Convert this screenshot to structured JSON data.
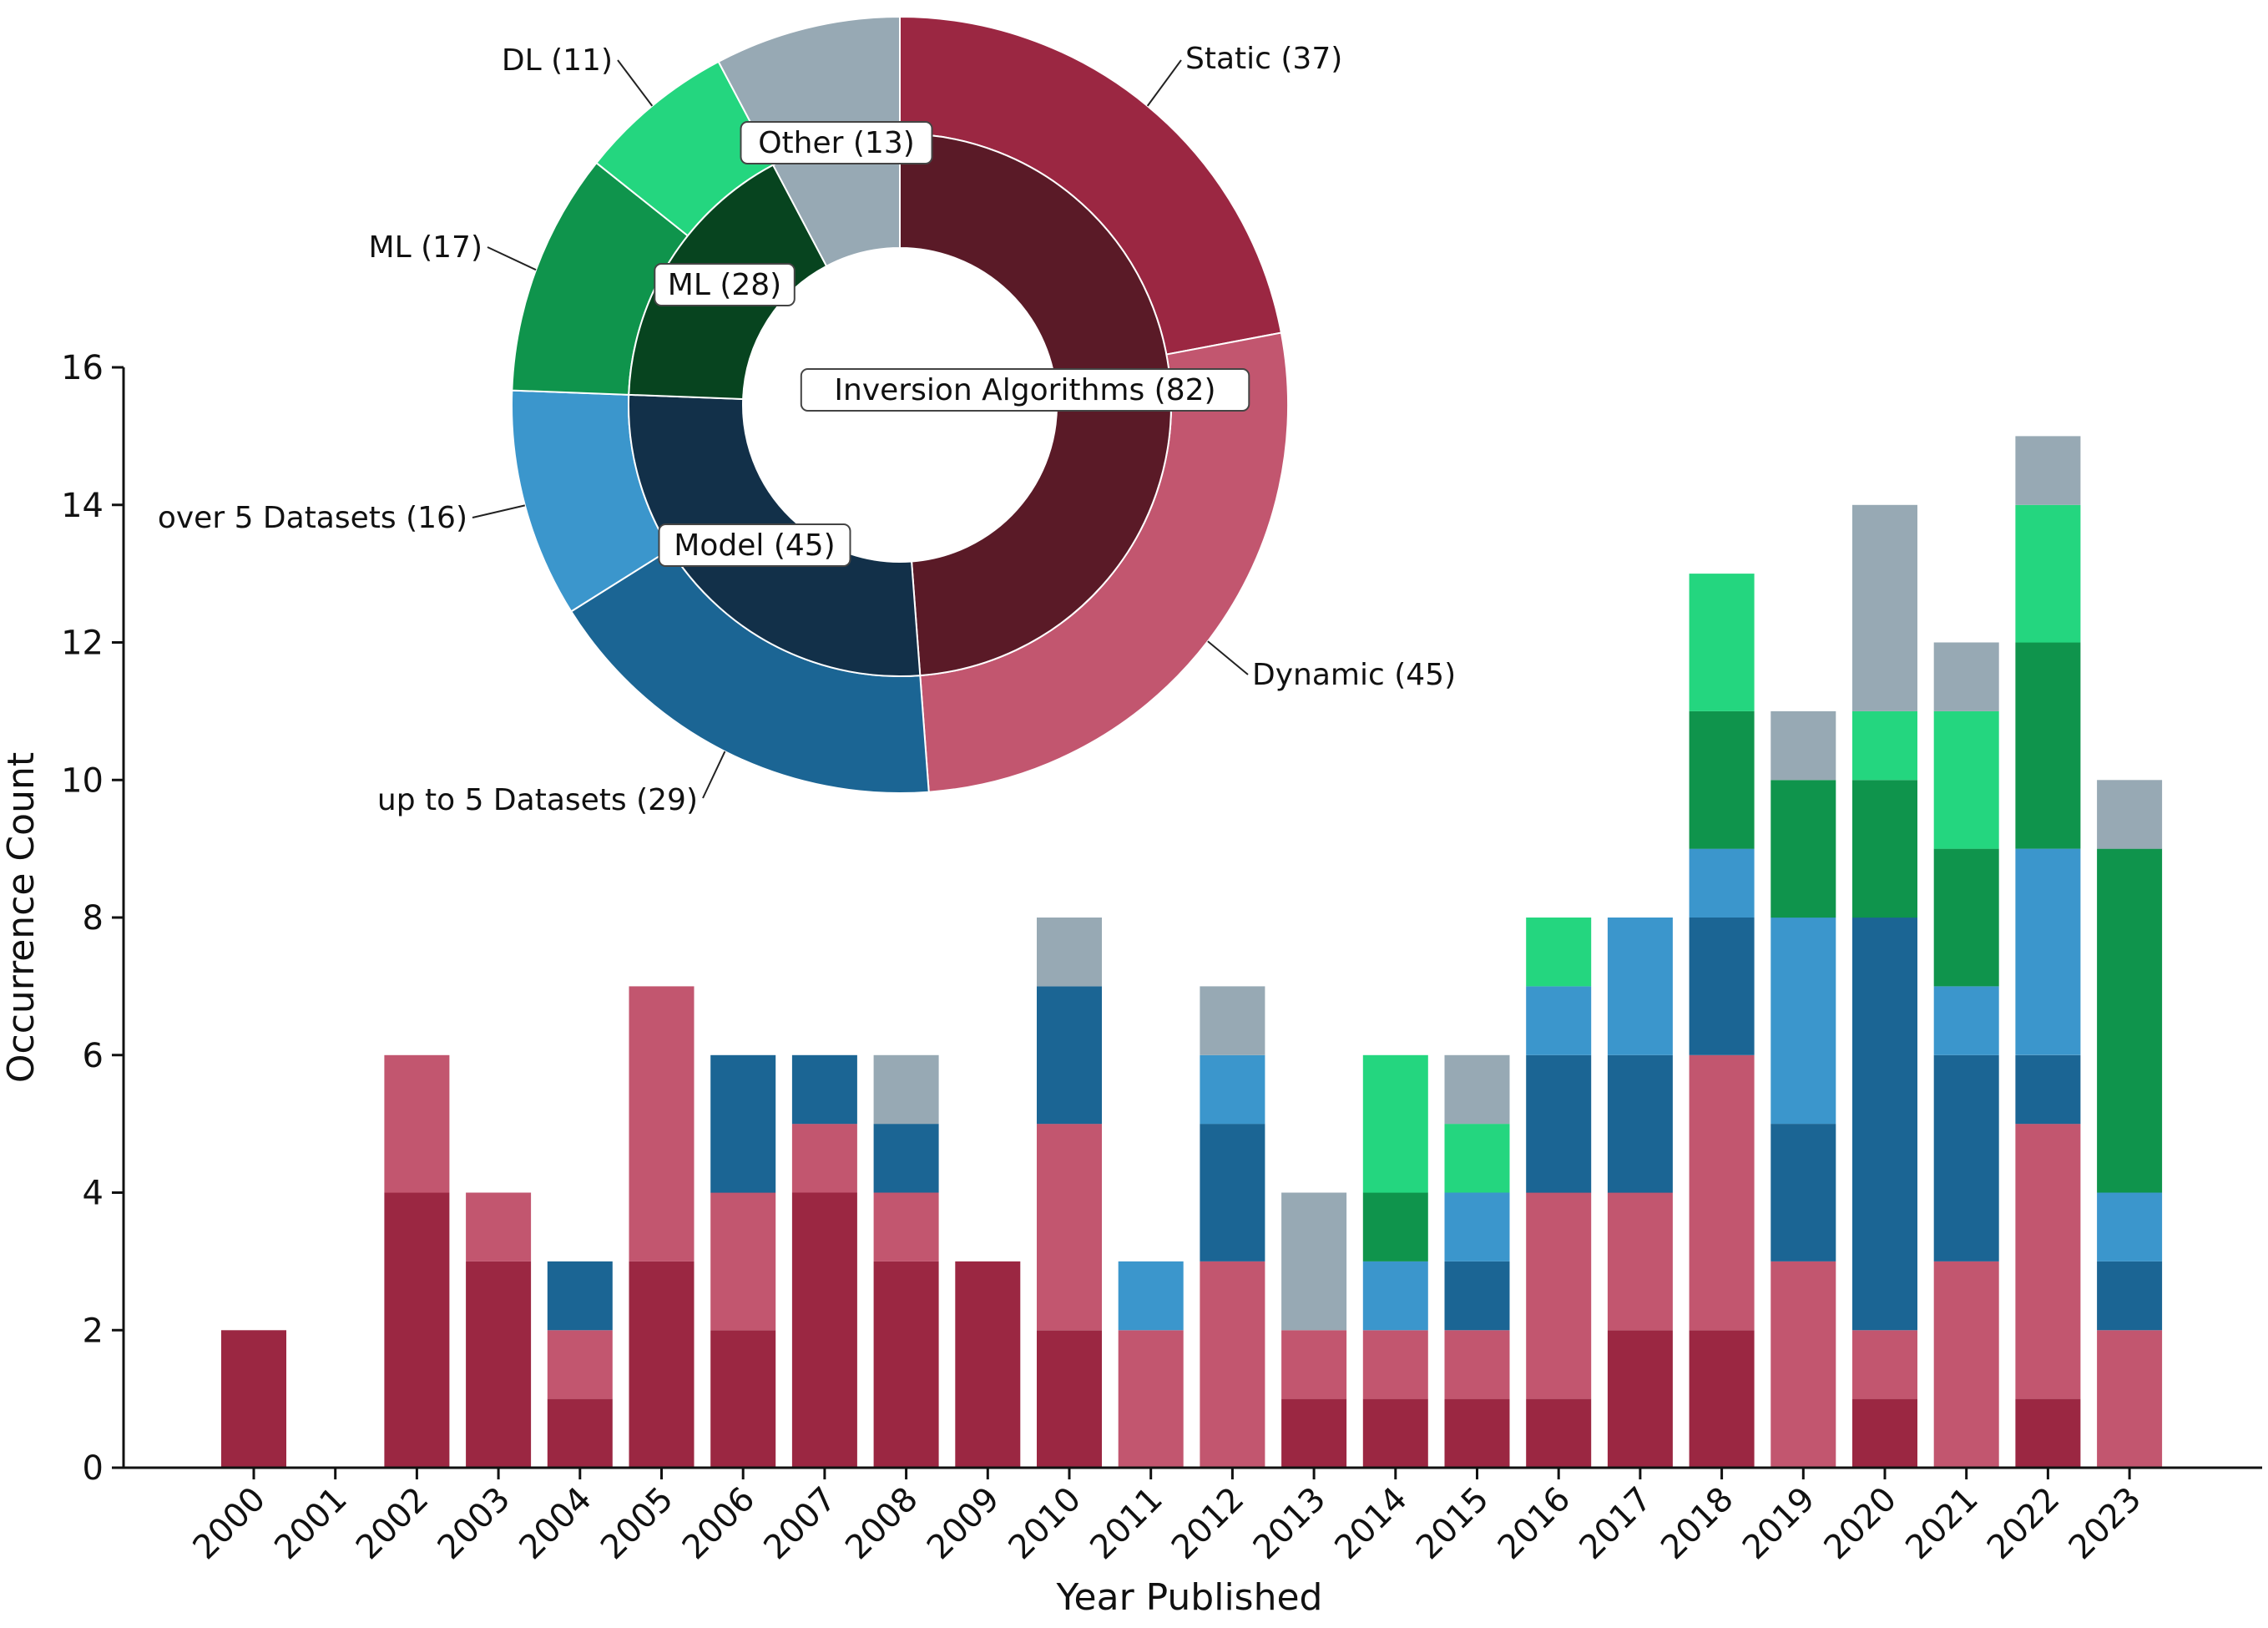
{
  "colors": {
    "static": "#9b2742",
    "dynamic": "#c2566f",
    "up_to_5_datasets": "#1b6594",
    "over_5_datasets": "#3b96cc",
    "ml": "#0f944c",
    "dl": "#24d67f",
    "other": "#97a9b4",
    "inner_inversion": "#5a1a27",
    "inner_model": "#123049",
    "inner_ml": "#07441f",
    "inner_other": "#97a9b4"
  },
  "chart_data": [
    {
      "type": "bar",
      "stacked": true,
      "title": "",
      "xlabel": "Year Published",
      "ylabel": "Occurrence Count",
      "ylim": [
        0,
        16
      ],
      "yticks": [
        0,
        2,
        4,
        6,
        8,
        10,
        12,
        14,
        16
      ],
      "grid": false,
      "categories": [
        "2000",
        "2001",
        "2002",
        "2003",
        "2004",
        "2005",
        "2006",
        "2007",
        "2008",
        "2009",
        "2010",
        "2011",
        "2012",
        "2013",
        "2014",
        "2015",
        "2016",
        "2017",
        "2018",
        "2019",
        "2020",
        "2021",
        "2022",
        "2023"
      ],
      "series": [
        {
          "name": "Static",
          "color_key": "static",
          "values": [
            2,
            0,
            4,
            3,
            1,
            3,
            2,
            4,
            3,
            3,
            2,
            0,
            0,
            1,
            1,
            1,
            1,
            2,
            2,
            0,
            1,
            0,
            1,
            0
          ]
        },
        {
          "name": "Dynamic",
          "color_key": "dynamic",
          "values": [
            0,
            0,
            2,
            1,
            1,
            4,
            2,
            1,
            1,
            0,
            3,
            2,
            3,
            1,
            1,
            1,
            3,
            2,
            4,
            3,
            1,
            3,
            4,
            2
          ]
        },
        {
          "name": "up to 5 Datasets",
          "color_key": "up_to_5_datasets",
          "values": [
            0,
            0,
            0,
            0,
            1,
            0,
            2,
            1,
            1,
            0,
            2,
            0,
            2,
            0,
            0,
            1,
            2,
            2,
            2,
            2,
            6,
            3,
            1,
            1
          ]
        },
        {
          "name": "over 5 Datasets",
          "color_key": "over_5_datasets",
          "values": [
            0,
            0,
            0,
            0,
            0,
            0,
            0,
            0,
            0,
            0,
            0,
            1,
            1,
            0,
            1,
            1,
            1,
            2,
            1,
            3,
            0,
            1,
            3,
            1
          ]
        },
        {
          "name": "ML",
          "color_key": "ml",
          "values": [
            0,
            0,
            0,
            0,
            0,
            0,
            0,
            0,
            0,
            0,
            0,
            0,
            0,
            0,
            1,
            0,
            0,
            0,
            2,
            2,
            2,
            2,
            3,
            5
          ]
        },
        {
          "name": "DL",
          "color_key": "dl",
          "values": [
            0,
            0,
            0,
            0,
            0,
            0,
            0,
            0,
            0,
            0,
            0,
            0,
            0,
            0,
            2,
            1,
            1,
            0,
            2,
            0,
            1,
            2,
            2,
            0
          ]
        },
        {
          "name": "Other",
          "color_key": "other",
          "values": [
            0,
            0,
            0,
            0,
            0,
            0,
            0,
            0,
            1,
            0,
            1,
            0,
            1,
            2,
            0,
            1,
            0,
            0,
            0,
            1,
            3,
            1,
            1,
            1
          ]
        }
      ]
    },
    {
      "type": "pie",
      "variant": "nested-donut",
      "outer_ring": [
        {
          "name": "Static",
          "value": 37,
          "label": "Static (37)",
          "color_key": "static"
        },
        {
          "name": "Dynamic",
          "value": 45,
          "label": "Dynamic (45)",
          "color_key": "dynamic"
        },
        {
          "name": "up to 5 Datasets",
          "value": 29,
          "label": "up to 5 Datasets (29)",
          "color_key": "up_to_5_datasets"
        },
        {
          "name": "over 5 Datasets",
          "value": 16,
          "label": "over 5 Datasets (16)",
          "color_key": "over_5_datasets"
        },
        {
          "name": "ML",
          "value": 17,
          "label": "ML (17)",
          "color_key": "ml"
        },
        {
          "name": "DL",
          "value": 11,
          "label": "DL (11)",
          "color_key": "dl"
        },
        {
          "name": "Other",
          "value": 13,
          "label": "",
          "color_key": "other"
        }
      ],
      "inner_ring": [
        {
          "name": "Inversion Algorithms",
          "value": 82,
          "label": "Inversion Algorithms (82)",
          "color_key": "inner_inversion"
        },
        {
          "name": "Model",
          "value": 45,
          "label": "Model (45)",
          "color_key": "inner_model"
        },
        {
          "name": "ML",
          "value": 28,
          "label": "ML (28)",
          "color_key": "inner_ml"
        },
        {
          "name": "Other",
          "value": 13,
          "label": "Other (13)",
          "color_key": "inner_other"
        }
      ]
    }
  ]
}
